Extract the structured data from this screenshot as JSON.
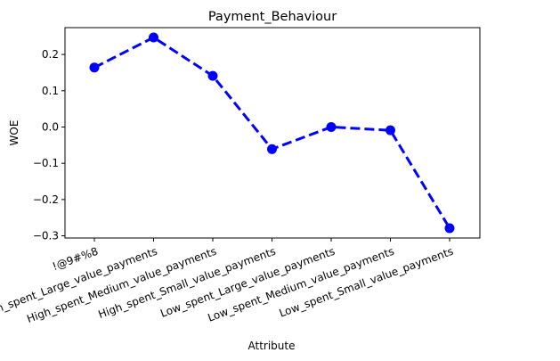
{
  "chart_data": {
    "type": "line",
    "title": "Payment_Behaviour",
    "xlabel": "Attribute",
    "ylabel": "WOE",
    "categories": [
      "!@9#%8",
      "High_spent_Large_value_payments",
      "High_spent_Medium_value_payments",
      "High_spent_Small_value_payments",
      "Low_spent_Large_value_payments",
      "Low_spent_Medium_value_payments",
      "Low_spent_Small_value_payments"
    ],
    "series": [
      {
        "values": [
          0.164,
          0.247,
          0.141,
          -0.061,
          0.0,
          -0.009,
          -0.279
        ],
        "color": "#0000ff",
        "line_style": "dashed",
        "marker": "circle"
      }
    ],
    "yticks": [
      0.2,
      0.1,
      0.0,
      -0.1,
      -0.2,
      -0.3
    ],
    "ytick_labels": [
      "0.2",
      "0.1",
      "0.0",
      "−0.1",
      "−0.2",
      "−0.3"
    ],
    "ylim": [
      -0.306,
      0.274
    ],
    "grid": false,
    "legend": "none"
  }
}
